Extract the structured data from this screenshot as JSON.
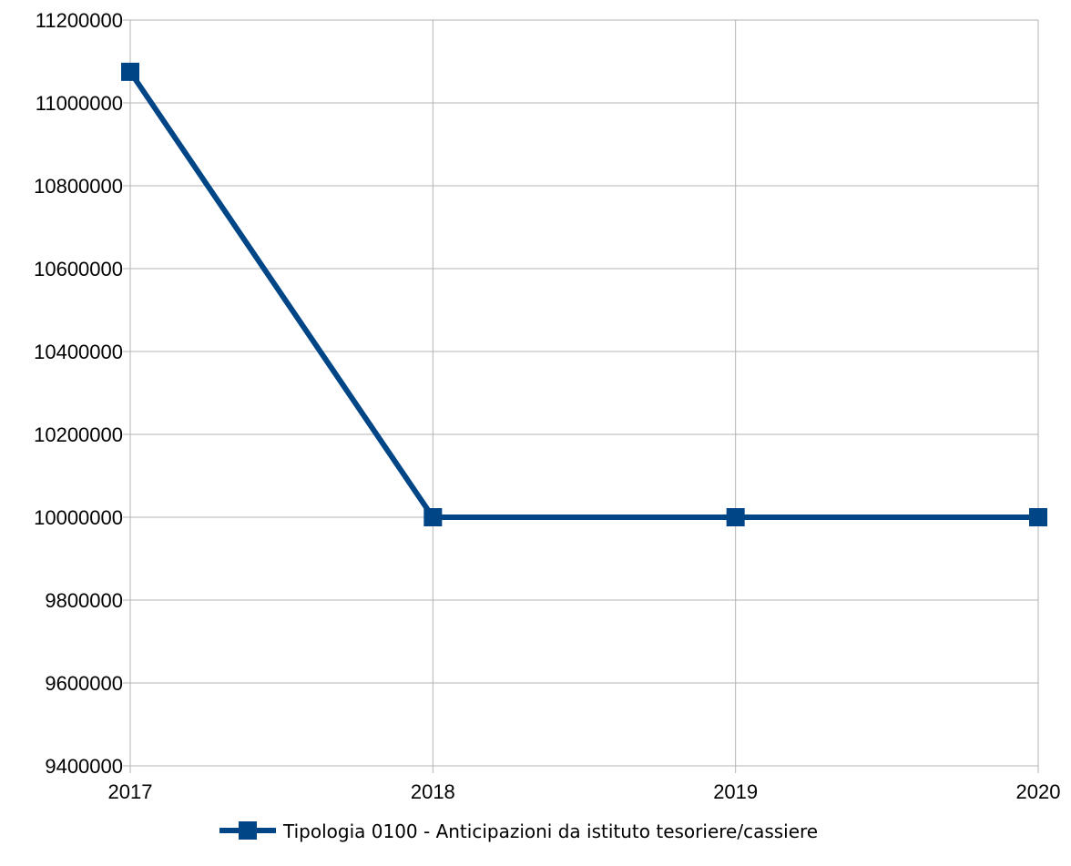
{
  "chart_data": {
    "type": "line",
    "title": "",
    "xlabel": "",
    "ylabel": "",
    "categories": [
      "2017",
      "2018",
      "2019",
      "2020"
    ],
    "ylim": [
      9400000,
      11200000
    ],
    "ytick_step": 200000,
    "y_tick_labels": [
      "9400000",
      "9600000",
      "9800000",
      "10000000",
      "10200000",
      "10400000",
      "10600000",
      "10800000",
      "11000000",
      "11200000"
    ],
    "grid": true,
    "legend_position": "bottom",
    "series": [
      {
        "name": "Tipologia 0100 - Anticipazioni da istituto tesoriere/cassiere",
        "color": "#004586",
        "marker": "square",
        "values": [
          11075000,
          10000000,
          10000000,
          10000000
        ]
      }
    ]
  }
}
